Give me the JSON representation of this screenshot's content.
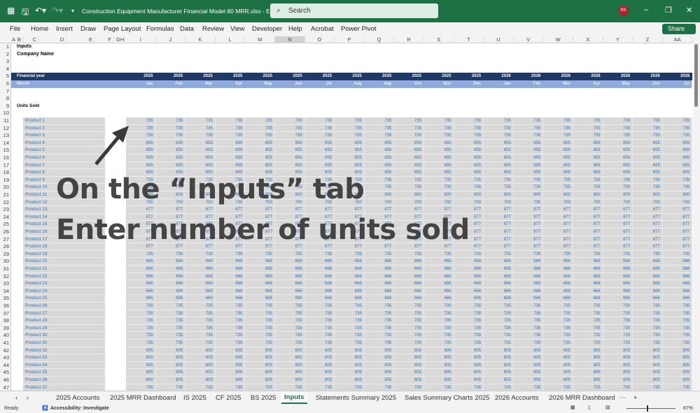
{
  "titlebar": {
    "document_title": "Construction Equipment Manufacturer Financial Model 80 MRR.xlsx  -  E...",
    "search_placeholder": "Search",
    "avatar_initials": "RS",
    "accent": "#1e7145"
  },
  "menu": [
    "File",
    "Home",
    "Insert",
    "Draw",
    "Page Layout",
    "Formulas",
    "Data",
    "Review",
    "View",
    "Developer",
    "Help",
    "Acrobat",
    "Power Pivot"
  ],
  "share_label": "Share",
  "column_letters_left": [
    {
      "l": "A",
      "x": 20
    },
    {
      "l": "B",
      "x": 28
    },
    {
      "l": "C",
      "x": 50
    },
    {
      "l": "D",
      "x": 89
    },
    {
      "l": "E",
      "x": 130
    },
    {
      "l": "F",
      "x": 157
    },
    {
      "l": "GH",
      "x": 172
    }
  ],
  "column_letters": [
    "I",
    "J",
    "K",
    "L",
    "M",
    "N",
    "O",
    "P",
    "Q",
    "R",
    "S",
    "T",
    "U",
    "V",
    "W",
    "X",
    "Y",
    "Z",
    "AA"
  ],
  "sheet": {
    "title": "Inputs",
    "company": "Company Name",
    "fy_label": "Financial year",
    "month_label": "Month",
    "section": "Units Sold",
    "years": [
      "2025",
      "2025",
      "2025",
      "2025",
      "2025",
      "2025",
      "2025",
      "2025",
      "2025",
      "2025",
      "2025",
      "2025",
      "2026",
      "2026",
      "2026",
      "2026",
      "2026",
      "2026",
      "2026"
    ],
    "months": [
      "Jan",
      "Feb",
      "Mar",
      "Apr",
      "May",
      "Jun",
      "Jul",
      "Aug",
      "Sep",
      "Oct",
      "Nov",
      "Dec",
      "Jan",
      "Feb",
      "Mar",
      "Apr",
      "May",
      "Jun",
      "Jul"
    ],
    "products": [
      {
        "name": "Product 1",
        "units": 735
      },
      {
        "name": "Product 2",
        "units": 735
      },
      {
        "name": "Product 3",
        "units": 735
      },
      {
        "name": "Product 4",
        "units": 655
      },
      {
        "name": "Product 5",
        "units": 655
      },
      {
        "name": "Product 6",
        "units": 655
      },
      {
        "name": "Product 7",
        "units": 655
      },
      {
        "name": "Product 8",
        "units": 655
      },
      {
        "name": "Product 9",
        "units": 735
      },
      {
        "name": "Product 10",
        "units": 735
      },
      {
        "name": "Product 11",
        "units": 800
      },
      {
        "name": "Product 12",
        "units": 700
      },
      {
        "name": "Product 13",
        "units": 877
      },
      {
        "name": "Product 14",
        "units": 877
      },
      {
        "name": "Product 15",
        "units": 877
      },
      {
        "name": "Product 16",
        "units": 877
      },
      {
        "name": "Product 17",
        "units": 877
      },
      {
        "name": "Product 18",
        "units": 877
      },
      {
        "name": "Product 19",
        "units": 735
      },
      {
        "name": "Product 20",
        "units": 666
      },
      {
        "name": "Product 21",
        "units": 666
      },
      {
        "name": "Product 22",
        "units": 666
      },
      {
        "name": "Product 23",
        "units": 666
      },
      {
        "name": "Product 24",
        "units": 666
      },
      {
        "name": "Product 25",
        "units": 666
      },
      {
        "name": "Product 26",
        "units": 735
      },
      {
        "name": "Product 27",
        "units": 735
      },
      {
        "name": "Product 28",
        "units": 735
      },
      {
        "name": "Product 29",
        "units": 735
      },
      {
        "name": "Product 30",
        "units": 735
      },
      {
        "name": "Product 31",
        "units": 735
      },
      {
        "name": "Product 32",
        "units": 805
      },
      {
        "name": "Product 33",
        "units": 805
      },
      {
        "name": "Product 34",
        "units": 805
      },
      {
        "name": "Product 35",
        "units": 805
      },
      {
        "name": "Product 36",
        "units": 805
      },
      {
        "name": "Product 37",
        "units": 735
      }
    ]
  },
  "overlay": {
    "line1": "On the “Inputs” tab",
    "line2": "Enter number of units sold"
  },
  "tabs": [
    "2025 Accounts",
    "2025 MRR Dashboard",
    "IS 2025",
    "CF 2025",
    "BS 2025",
    "Inputs",
    "Statements Summary 2025",
    "Sales Summary Charts 2025",
    "2026 Accounts",
    "2026 MRR Dashboard"
  ],
  "active_tab": "Inputs",
  "status": {
    "ready": "Ready",
    "accessibility": "Accessibility: Investigate",
    "zoom": "87%"
  }
}
